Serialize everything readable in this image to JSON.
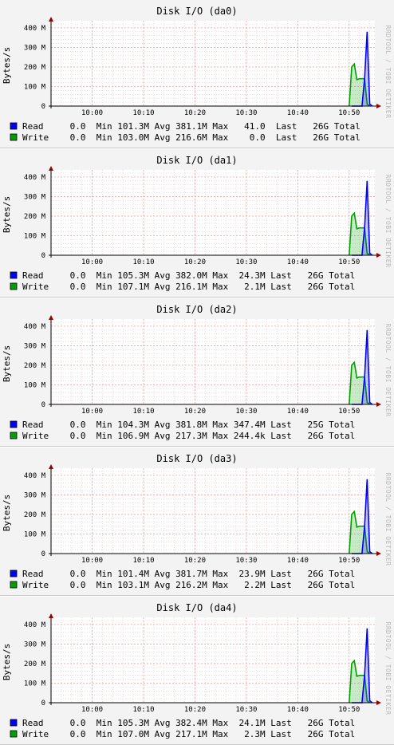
{
  "ylabel": "Bytes/s",
  "watermark": "RRDTOOL / TOBI OETIKER",
  "y_ticks": [
    "0",
    "100 M",
    "200 M",
    "300 M",
    "400 M"
  ],
  "x_ticks": [
    "10:00",
    "10:10",
    "10:20",
    "10:30",
    "10:40",
    "10:50"
  ],
  "colors": {
    "read": "#0000ff",
    "write": "#00a000",
    "grid": "#f0a0a0",
    "axis": "#000000",
    "arrow": "#990000"
  },
  "legend_labels": {
    "read": "Read",
    "write": "Write"
  },
  "chart_data": [
    {
      "type": "area",
      "title": "Disk I/O (da0)",
      "ylabel": "Bytes/s",
      "ylim": [
        0,
        420000000
      ],
      "x_ticks": [
        "10:00",
        "10:10",
        "10:20",
        "10:30",
        "10:40",
        "10:50"
      ],
      "y_ticks": [
        "0",
        "100 M",
        "200 M",
        "300 M",
        "400 M"
      ],
      "series": [
        {
          "name": "Read",
          "color": "#0000ff",
          "x": [
            "10:50.5",
            "10:51",
            "10:51.5",
            "10:52",
            "10:52.5",
            "10:53",
            "10:53.5",
            "10:54",
            "10:54.5"
          ],
          "y": [
            0,
            0,
            0,
            0,
            0,
            140000000,
            380000000,
            10000000,
            0
          ]
        },
        {
          "name": "Write",
          "color": "#00a000",
          "x": [
            "10:50",
            "10:50.5",
            "10:51",
            "10:51.5",
            "10:52",
            "10:52.5",
            "10:53",
            "10:53.5",
            "10:54"
          ],
          "y": [
            0,
            200000000,
            215000000,
            135000000,
            140000000,
            140000000,
            140000000,
            10000000,
            0
          ]
        }
      ],
      "legend": [
        {
          "name": "Read",
          "line": "     0.0  Min 101.3M Avg 381.1M Max   41.0  Last   26G Total"
        },
        {
          "name": "Write",
          "line": "    0.0  Min 103.0M Avg 216.6M Max    0.0  Last   26G Total"
        }
      ]
    },
    {
      "type": "area",
      "title": "Disk I/O (da1)",
      "ylabel": "Bytes/s",
      "ylim": [
        0,
        420000000
      ],
      "x_ticks": [
        "10:00",
        "10:10",
        "10:20",
        "10:30",
        "10:40",
        "10:50"
      ],
      "y_ticks": [
        "0",
        "100 M",
        "200 M",
        "300 M",
        "400 M"
      ],
      "series": [
        {
          "name": "Read",
          "color": "#0000ff",
          "x": [
            "10:50.5",
            "10:51",
            "10:51.5",
            "10:52",
            "10:52.5",
            "10:53",
            "10:53.5",
            "10:54",
            "10:54.5"
          ],
          "y": [
            0,
            0,
            0,
            0,
            0,
            140000000,
            380000000,
            10000000,
            0
          ]
        },
        {
          "name": "Write",
          "color": "#00a000",
          "x": [
            "10:50",
            "10:50.5",
            "10:51",
            "10:51.5",
            "10:52",
            "10:52.5",
            "10:53",
            "10:53.5",
            "10:54"
          ],
          "y": [
            0,
            200000000,
            215000000,
            135000000,
            140000000,
            140000000,
            140000000,
            10000000,
            0
          ]
        }
      ],
      "legend": [
        {
          "name": "Read",
          "line": "     0.0  Min 105.3M Avg 382.0M Max  24.3M Last   26G Total"
        },
        {
          "name": "Write",
          "line": "    0.0  Min 107.1M Avg 216.1M Max   2.1M Last   26G Total"
        }
      ]
    },
    {
      "type": "area",
      "title": "Disk I/O (da2)",
      "ylabel": "Bytes/s",
      "ylim": [
        0,
        420000000
      ],
      "x_ticks": [
        "10:00",
        "10:10",
        "10:20",
        "10:30",
        "10:40",
        "10:50"
      ],
      "y_ticks": [
        "0",
        "100 M",
        "200 M",
        "300 M",
        "400 M"
      ],
      "series": [
        {
          "name": "Read",
          "color": "#0000ff",
          "x": [
            "10:50.5",
            "10:51",
            "10:51.5",
            "10:52",
            "10:52.5",
            "10:53",
            "10:53.5",
            "10:54",
            "10:54.5"
          ],
          "y": [
            0,
            0,
            0,
            0,
            0,
            140000000,
            380000000,
            10000000,
            0
          ]
        },
        {
          "name": "Write",
          "color": "#00a000",
          "x": [
            "10:50",
            "10:50.5",
            "10:51",
            "10:51.5",
            "10:52",
            "10:52.5",
            "10:53",
            "10:53.5",
            "10:54"
          ],
          "y": [
            0,
            200000000,
            215000000,
            135000000,
            140000000,
            140000000,
            140000000,
            10000000,
            0
          ]
        }
      ],
      "legend": [
        {
          "name": "Read",
          "line": "     0.0  Min 104.3M Avg 381.8M Max 347.4M Last   25G Total"
        },
        {
          "name": "Write",
          "line": "    0.0  Min 106.9M Avg 217.3M Max 244.4k Last   26G Total"
        }
      ]
    },
    {
      "type": "area",
      "title": "Disk I/O (da3)",
      "ylabel": "Bytes/s",
      "ylim": [
        0,
        420000000
      ],
      "x_ticks": [
        "10:00",
        "10:10",
        "10:20",
        "10:30",
        "10:40",
        "10:50"
      ],
      "y_ticks": [
        "0",
        "100 M",
        "200 M",
        "300 M",
        "400 M"
      ],
      "series": [
        {
          "name": "Read",
          "color": "#0000ff",
          "x": [
            "10:50.5",
            "10:51",
            "10:51.5",
            "10:52",
            "10:52.5",
            "10:53",
            "10:53.5",
            "10:54",
            "10:54.5"
          ],
          "y": [
            0,
            0,
            0,
            0,
            0,
            140000000,
            380000000,
            10000000,
            0
          ]
        },
        {
          "name": "Write",
          "color": "#00a000",
          "x": [
            "10:50",
            "10:50.5",
            "10:51",
            "10:51.5",
            "10:52",
            "10:52.5",
            "10:53",
            "10:53.5",
            "10:54"
          ],
          "y": [
            0,
            200000000,
            215000000,
            135000000,
            140000000,
            140000000,
            140000000,
            10000000,
            0
          ]
        }
      ],
      "legend": [
        {
          "name": "Read",
          "line": "     0.0  Min 101.4M Avg 381.7M Max  23.9M Last   26G Total"
        },
        {
          "name": "Write",
          "line": "    0.0  Min 103.1M Avg 216.2M Max   2.2M Last   26G Total"
        }
      ]
    },
    {
      "type": "area",
      "title": "Disk I/O (da4)",
      "ylabel": "Bytes/s",
      "ylim": [
        0,
        420000000
      ],
      "x_ticks": [
        "10:00",
        "10:10",
        "10:20",
        "10:30",
        "10:40",
        "10:50"
      ],
      "y_ticks": [
        "0",
        "100 M",
        "200 M",
        "300 M",
        "400 M"
      ],
      "series": [
        {
          "name": "Read",
          "color": "#0000ff",
          "x": [
            "10:50.5",
            "10:51",
            "10:51.5",
            "10:52",
            "10:52.5",
            "10:53",
            "10:53.5",
            "10:54",
            "10:54.5"
          ],
          "y": [
            0,
            0,
            0,
            0,
            0,
            140000000,
            380000000,
            10000000,
            0
          ]
        },
        {
          "name": "Write",
          "color": "#00a000",
          "x": [
            "10:50",
            "10:50.5",
            "10:51",
            "10:51.5",
            "10:52",
            "10:52.5",
            "10:53",
            "10:53.5",
            "10:54"
          ],
          "y": [
            0,
            200000000,
            215000000,
            135000000,
            140000000,
            140000000,
            140000000,
            10000000,
            0
          ]
        }
      ],
      "legend": [
        {
          "name": "Read",
          "line": "     0.0  Min 105.3M Avg 382.4M Max  24.1M Last   26G Total"
        },
        {
          "name": "Write",
          "line": "    0.0  Min 107.0M Avg 217.1M Max   2.3M Last   26G Total"
        }
      ]
    }
  ]
}
